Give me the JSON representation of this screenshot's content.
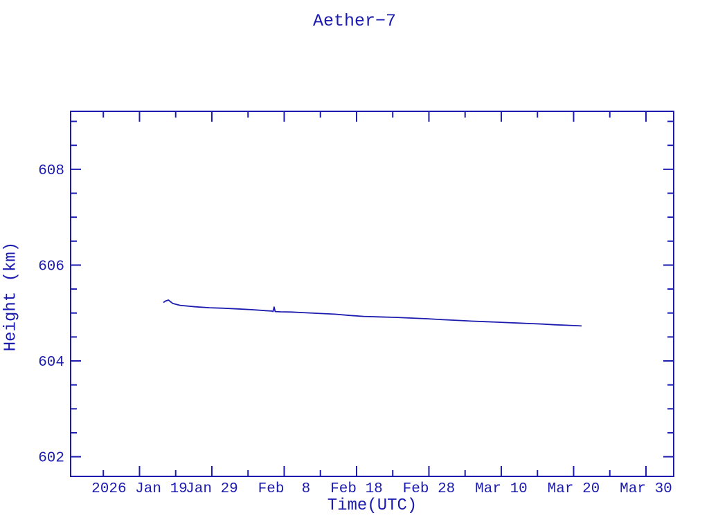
{
  "page": {
    "background": "#ffffff",
    "ink_color": "#1b1bb0"
  },
  "chart_data": {
    "type": "line",
    "title": "Aether−7",
    "xlabel": "Time(UTC)",
    "ylabel": "Height (km)",
    "x_unit": "days since 2026 Jan 19 00:00 UTC",
    "x_range": [
      -9.52,
      73.83
    ],
    "y_range": [
      601.59,
      609.21
    ],
    "x_major_ticks": [
      0,
      10,
      20,
      30,
      40,
      50,
      60,
      70
    ],
    "x_major_labels": [
      "2026 Jan 19",
      "Jan 29",
      "Feb  8",
      "Feb 18",
      "Feb 28",
      "Mar 10",
      "Mar 20",
      "Mar 30"
    ],
    "x_minor_ticks": [
      -5,
      5,
      15,
      25,
      35,
      45,
      55,
      65
    ],
    "y_major_ticks": [
      602,
      604,
      606,
      608
    ],
    "y_major_labels": [
      "602",
      "604",
      "606",
      "608"
    ],
    "y_minor_ticks": [
      602.5,
      603,
      603.5,
      604.5,
      605,
      605.5,
      606.5,
      607,
      607.5,
      608.5,
      609
    ],
    "grid": false,
    "legend": false,
    "line_color": "#1b1bb0",
    "series": [
      {
        "name": "height-km",
        "x": [
          3.3,
          3.6,
          4.0,
          4.6,
          5.6,
          7.7,
          9.7,
          11.7,
          13.6,
          15.5,
          17.4,
          18.3,
          18.45,
          18.6,
          18.75,
          19.5,
          21.0,
          23.0,
          25.0,
          27.0,
          29.0,
          31.0,
          33.0,
          35.3,
          37.5,
          39.7,
          42.0,
          44.2,
          46.0,
          47.7,
          49.3,
          50.9,
          52.5,
          54.1,
          55.7,
          57.3,
          59.0,
          61.1
        ],
        "y": [
          605.22,
          605.25,
          605.27,
          605.2,
          605.16,
          605.13,
          605.11,
          605.1,
          605.085,
          605.07,
          605.05,
          605.04,
          605.03,
          605.125,
          605.03,
          605.025,
          605.02,
          605.005,
          604.99,
          604.975,
          604.95,
          604.93,
          604.92,
          604.91,
          604.895,
          604.88,
          604.86,
          604.845,
          604.83,
          604.82,
          604.81,
          604.8,
          604.79,
          604.78,
          604.77,
          604.755,
          604.745,
          604.73
        ]
      }
    ]
  }
}
